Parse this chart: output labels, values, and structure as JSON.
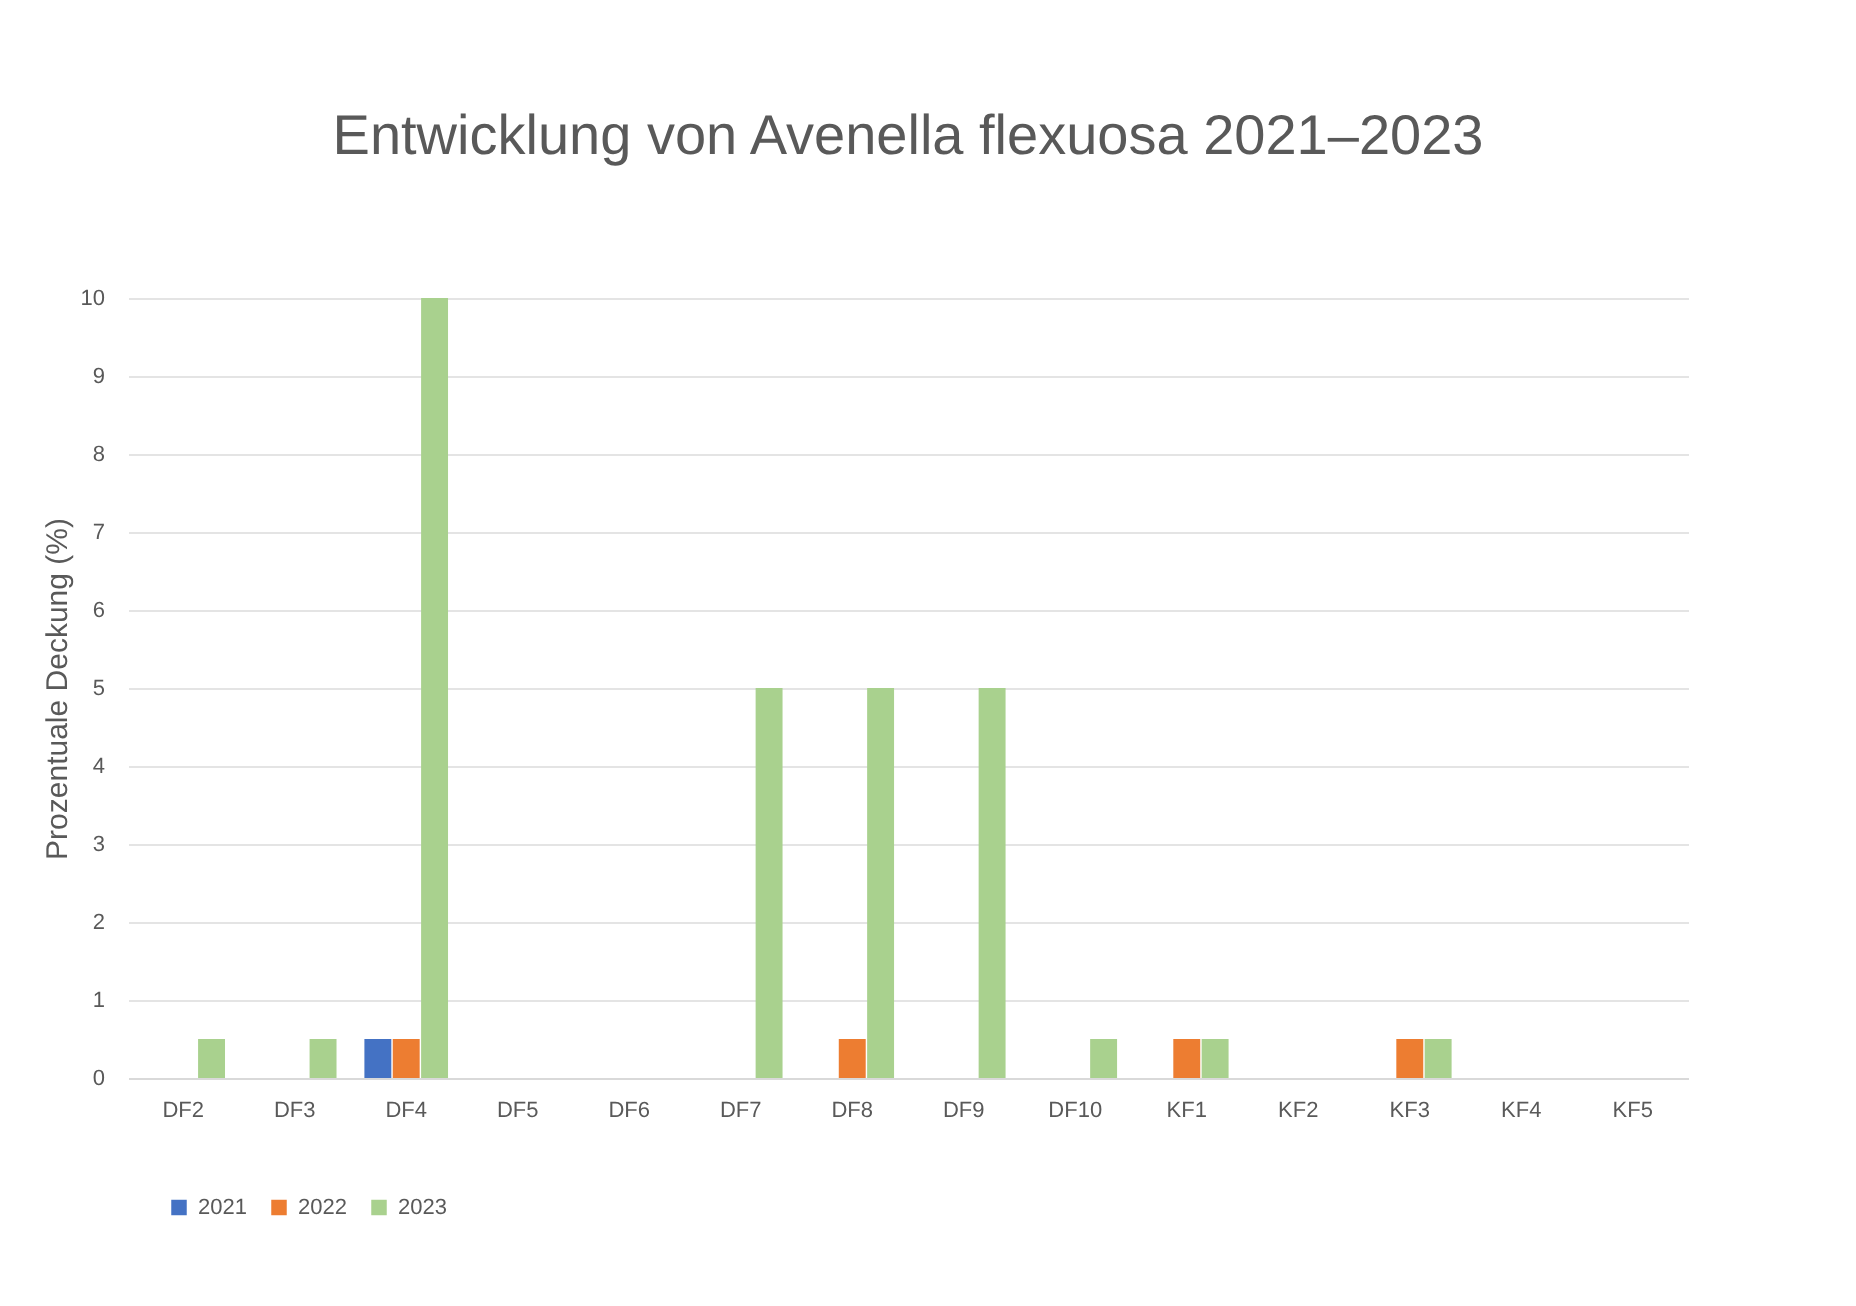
{
  "chart_data": {
    "type": "bar",
    "title": "Entwicklung von Avenella flexuosa 2021–2023",
    "ylabel": "Prozentuale Deckung (%)",
    "categories": [
      "DF2",
      "DF3",
      "DF4",
      "DF5",
      "DF6",
      "DF7",
      "DF8",
      "DF9",
      "DF10",
      "KF1",
      "KF2",
      "KF3",
      "KF4",
      "KF5"
    ],
    "series": [
      {
        "name": "2021",
        "color": "#4472c4",
        "values": [
          0,
          0,
          0.5,
          0,
          0,
          0,
          0,
          0,
          0,
          0,
          0,
          0,
          0,
          0
        ]
      },
      {
        "name": "2022",
        "color": "#ed7d31",
        "values": [
          0,
          0,
          0.5,
          0,
          0,
          0,
          0.5,
          0,
          0,
          0.5,
          0,
          0.5,
          0,
          0
        ]
      },
      {
        "name": "2023",
        "color": "#a9d18e",
        "values": [
          0.5,
          0.5,
          10,
          0,
          0,
          5,
          5,
          5,
          0.5,
          0.5,
          0,
          0.5,
          0,
          0
        ]
      }
    ],
    "ylim": [
      0,
      10
    ],
    "yticks": [
      0,
      1,
      2,
      3,
      4,
      5,
      6,
      7,
      8,
      9,
      10
    ],
    "grid": "y",
    "legend": "bottom"
  }
}
